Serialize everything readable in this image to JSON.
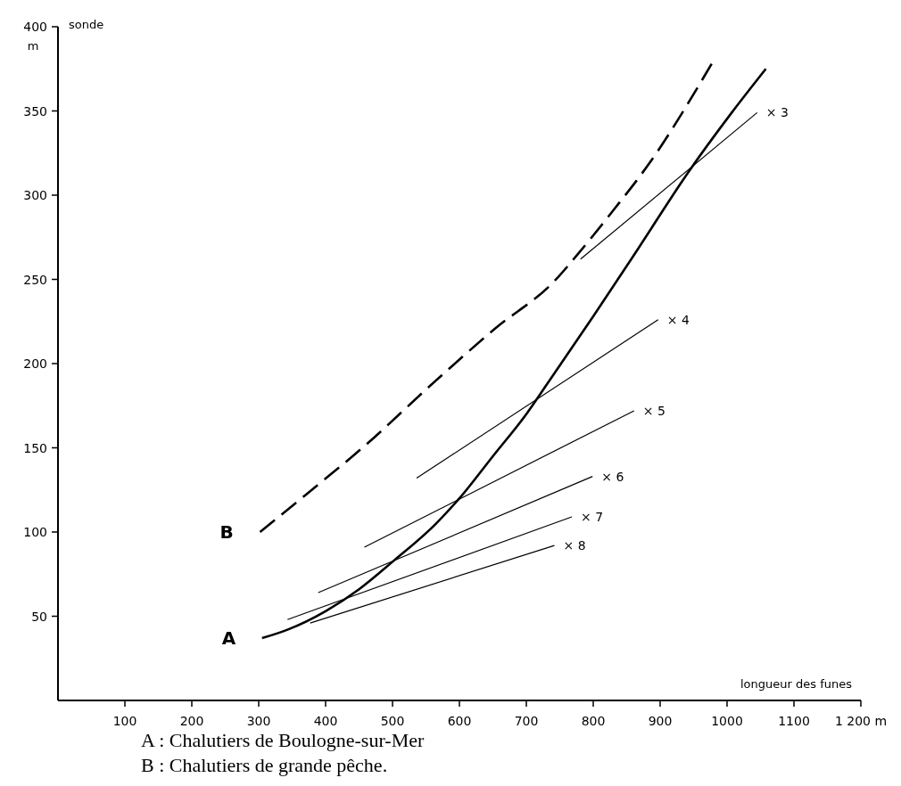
{
  "chart_data": {
    "type": "line",
    "xlabel": "longueur des funes",
    "ylabel": "sonde",
    "xlim": [
      0,
      1200
    ],
    "ylim": [
      0,
      400
    ],
    "xticks": [
      100,
      200,
      300,
      400,
      500,
      600,
      700,
      800,
      900,
      1000,
      1100,
      {
        "value": 1200,
        "label": "1 200 m"
      }
    ],
    "yticks": [
      50,
      100,
      150,
      200,
      250,
      300,
      350,
      400
    ],
    "grid": false,
    "annotations": [
      "m",
      "A : Chalutiers de Boulogne-sur-Mer",
      "B : Chalutiers de grande pêche."
    ],
    "series": [
      {
        "name": "A",
        "color": "#000000",
        "line_style": "solid",
        "x": [
          305,
          343,
          400,
          450,
          502,
          565,
          600,
          650,
          700,
          733,
          800,
          870,
          941,
          1007,
          1058
        ],
        "values": [
          37,
          42,
          53,
          66,
          83,
          105,
          120,
          145,
          170,
          189,
          228,
          270,
          313,
          349,
          375
        ]
      },
      {
        "name": "B",
        "color": "#000000",
        "line_style": "dashed",
        "x": [
          302,
          370,
          458,
          565,
          654,
          742,
          777,
          830,
          884,
          977
        ],
        "values": [
          100,
          122,
          151,
          190,
          221,
          249,
          265,
          291,
          319,
          378
        ]
      },
      {
        "name": "× 3",
        "color": "#000000",
        "line_style": "solid",
        "x": [
          781,
          1045
        ],
        "values": [
          262,
          349
        ]
      },
      {
        "name": "× 4",
        "color": "#000000",
        "line_style": "solid",
        "x": [
          536,
          897
        ],
        "values": [
          132,
          226
        ]
      },
      {
        "name": "× 5",
        "color": "#000000",
        "line_style": "solid",
        "x": [
          458,
          861
        ],
        "values": [
          91,
          172
        ]
      },
      {
        "name": "× 6",
        "color": "#000000",
        "line_style": "solid",
        "x": [
          389,
          799
        ],
        "values": [
          64,
          133
        ]
      },
      {
        "name": "× 7",
        "color": "#000000",
        "line_style": "solid",
        "x": [
          343,
          768
        ],
        "values": [
          48,
          109
        ]
      },
      {
        "name": "× 8",
        "color": "#000000",
        "line_style": "solid",
        "x": [
          377,
          742
        ],
        "values": [
          46,
          92
        ]
      }
    ]
  }
}
